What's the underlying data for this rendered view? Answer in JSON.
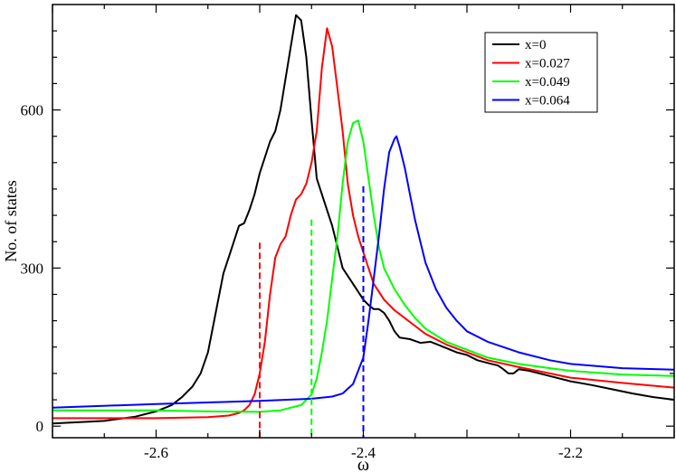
{
  "chart_data": {
    "type": "line",
    "title": "",
    "xlabel": "ω",
    "ylabel": "No. of states",
    "xlim": [
      -2.7,
      -2.1
    ],
    "ylim": [
      -22,
      800
    ],
    "xticks": [
      -2.6,
      -2.4,
      -2.2
    ],
    "xtick_labels": [
      "-2.6",
      "-2.4",
      "-2.2"
    ],
    "yticks": [
      0,
      300,
      600
    ],
    "ytick_labels": [
      "0",
      "300",
      "600"
    ],
    "grid": false,
    "legend_position": "top-right",
    "series": [
      {
        "name": "x=0",
        "color": "#000000",
        "points": [
          [
            -2.7,
            5
          ],
          [
            -2.65,
            10
          ],
          [
            -2.62,
            18
          ],
          [
            -2.6,
            28
          ],
          [
            -2.585,
            40
          ],
          [
            -2.575,
            55
          ],
          [
            -2.565,
            75
          ],
          [
            -2.557,
            100
          ],
          [
            -2.55,
            140
          ],
          [
            -2.545,
            190
          ],
          [
            -2.54,
            240
          ],
          [
            -2.535,
            290
          ],
          [
            -2.53,
            320
          ],
          [
            -2.525,
            350
          ],
          [
            -2.52,
            380
          ],
          [
            -2.515,
            385
          ],
          [
            -2.51,
            410
          ],
          [
            -2.505,
            440
          ],
          [
            -2.5,
            480
          ],
          [
            -2.495,
            510
          ],
          [
            -2.49,
            540
          ],
          [
            -2.485,
            560
          ],
          [
            -2.48,
            600
          ],
          [
            -2.475,
            660
          ],
          [
            -2.47,
            720
          ],
          [
            -2.465,
            780
          ],
          [
            -2.46,
            770
          ],
          [
            -2.455,
            700
          ],
          [
            -2.45,
            580
          ],
          [
            -2.445,
            470
          ],
          [
            -2.44,
            440
          ],
          [
            -2.435,
            410
          ],
          [
            -2.43,
            380
          ],
          [
            -2.425,
            340
          ],
          [
            -2.42,
            300
          ],
          [
            -2.41,
            270
          ],
          [
            -2.405,
            255
          ],
          [
            -2.4,
            240
          ],
          [
            -2.395,
            230
          ],
          [
            -2.39,
            222
          ],
          [
            -2.385,
            222
          ],
          [
            -2.38,
            215
          ],
          [
            -2.375,
            200
          ],
          [
            -2.37,
            180
          ],
          [
            -2.365,
            168
          ],
          [
            -2.355,
            165
          ],
          [
            -2.345,
            158
          ],
          [
            -2.335,
            160
          ],
          [
            -2.325,
            152
          ],
          [
            -2.31,
            140
          ],
          [
            -2.3,
            135
          ],
          [
            -2.29,
            125
          ],
          [
            -2.28,
            120
          ],
          [
            -2.27,
            115
          ],
          [
            -2.265,
            108
          ],
          [
            -2.26,
            100
          ],
          [
            -2.255,
            100
          ],
          [
            -2.25,
            108
          ],
          [
            -2.24,
            105
          ],
          [
            -2.22,
            95
          ],
          [
            -2.2,
            85
          ],
          [
            -2.18,
            78
          ],
          [
            -2.16,
            70
          ],
          [
            -2.14,
            62
          ],
          [
            -2.12,
            55
          ],
          [
            -2.1,
            50
          ]
        ]
      },
      {
        "name": "x=0.027",
        "color": "#ff0000",
        "points": [
          [
            -2.7,
            15
          ],
          [
            -2.65,
            15
          ],
          [
            -2.6,
            15
          ],
          [
            -2.55,
            17
          ],
          [
            -2.53,
            20
          ],
          [
            -2.52,
            25
          ],
          [
            -2.515,
            30
          ],
          [
            -2.51,
            40
          ],
          [
            -2.505,
            60
          ],
          [
            -2.5,
            100
          ],
          [
            -2.495,
            160
          ],
          [
            -2.49,
            250
          ],
          [
            -2.485,
            320
          ],
          [
            -2.48,
            345
          ],
          [
            -2.475,
            360
          ],
          [
            -2.47,
            400
          ],
          [
            -2.465,
            430
          ],
          [
            -2.46,
            440
          ],
          [
            -2.455,
            460
          ],
          [
            -2.45,
            500
          ],
          [
            -2.445,
            560
          ],
          [
            -2.44,
            680
          ],
          [
            -2.435,
            755
          ],
          [
            -2.43,
            720
          ],
          [
            -2.425,
            640
          ],
          [
            -2.42,
            560
          ],
          [
            -2.415,
            460
          ],
          [
            -2.41,
            400
          ],
          [
            -2.405,
            360
          ],
          [
            -2.4,
            330
          ],
          [
            -2.395,
            300
          ],
          [
            -2.39,
            270
          ],
          [
            -2.38,
            240
          ],
          [
            -2.37,
            220
          ],
          [
            -2.36,
            205
          ],
          [
            -2.35,
            190
          ],
          [
            -2.34,
            175
          ],
          [
            -2.32,
            155
          ],
          [
            -2.3,
            140
          ],
          [
            -2.28,
            125
          ],
          [
            -2.25,
            112
          ],
          [
            -2.22,
            100
          ],
          [
            -2.2,
            92
          ],
          [
            -2.15,
            82
          ],
          [
            -2.1,
            73
          ]
        ]
      },
      {
        "name": "x=0.049",
        "color": "#00ff00",
        "points": [
          [
            -2.7,
            30
          ],
          [
            -2.65,
            30
          ],
          [
            -2.6,
            30
          ],
          [
            -2.55,
            28
          ],
          [
            -2.5,
            27
          ],
          [
            -2.48,
            30
          ],
          [
            -2.46,
            40
          ],
          [
            -2.45,
            60
          ],
          [
            -2.445,
            90
          ],
          [
            -2.44,
            140
          ],
          [
            -2.435,
            200
          ],
          [
            -2.43,
            280
          ],
          [
            -2.425,
            360
          ],
          [
            -2.42,
            460
          ],
          [
            -2.415,
            540
          ],
          [
            -2.41,
            575
          ],
          [
            -2.405,
            580
          ],
          [
            -2.4,
            540
          ],
          [
            -2.395,
            470
          ],
          [
            -2.39,
            400
          ],
          [
            -2.385,
            340
          ],
          [
            -2.38,
            300
          ],
          [
            -2.37,
            260
          ],
          [
            -2.36,
            230
          ],
          [
            -2.35,
            205
          ],
          [
            -2.34,
            185
          ],
          [
            -2.32,
            160
          ],
          [
            -2.3,
            145
          ],
          [
            -2.28,
            130
          ],
          [
            -2.25,
            118
          ],
          [
            -2.22,
            110
          ],
          [
            -2.2,
            105
          ],
          [
            -2.15,
            98
          ],
          [
            -2.1,
            95
          ]
        ]
      },
      {
        "name": "x=0.064",
        "color": "#0000ff",
        "points": [
          [
            -2.7,
            35
          ],
          [
            -2.6,
            42
          ],
          [
            -2.55,
            45
          ],
          [
            -2.5,
            48
          ],
          [
            -2.45,
            52
          ],
          [
            -2.43,
            56
          ],
          [
            -2.42,
            62
          ],
          [
            -2.41,
            80
          ],
          [
            -2.4,
            130
          ],
          [
            -2.395,
            200
          ],
          [
            -2.39,
            280
          ],
          [
            -2.385,
            360
          ],
          [
            -2.38,
            450
          ],
          [
            -2.375,
            520
          ],
          [
            -2.37,
            545
          ],
          [
            -2.368,
            550
          ],
          [
            -2.365,
            530
          ],
          [
            -2.36,
            490
          ],
          [
            -2.355,
            440
          ],
          [
            -2.35,
            390
          ],
          [
            -2.345,
            350
          ],
          [
            -2.34,
            310
          ],
          [
            -2.33,
            260
          ],
          [
            -2.32,
            225
          ],
          [
            -2.31,
            200
          ],
          [
            -2.3,
            180
          ],
          [
            -2.28,
            160
          ],
          [
            -2.25,
            140
          ],
          [
            -2.22,
            125
          ],
          [
            -2.2,
            118
          ],
          [
            -2.15,
            110
          ],
          [
            -2.1,
            107
          ]
        ]
      }
    ],
    "vlines": [
      {
        "x": -2.5,
        "y_top": 348,
        "color": "#ff0000"
      },
      {
        "x": -2.45,
        "y_top": 392,
        "color": "#00ff00"
      },
      {
        "x": -2.4,
        "y_top": 455,
        "color": "#0000ff"
      }
    ]
  }
}
